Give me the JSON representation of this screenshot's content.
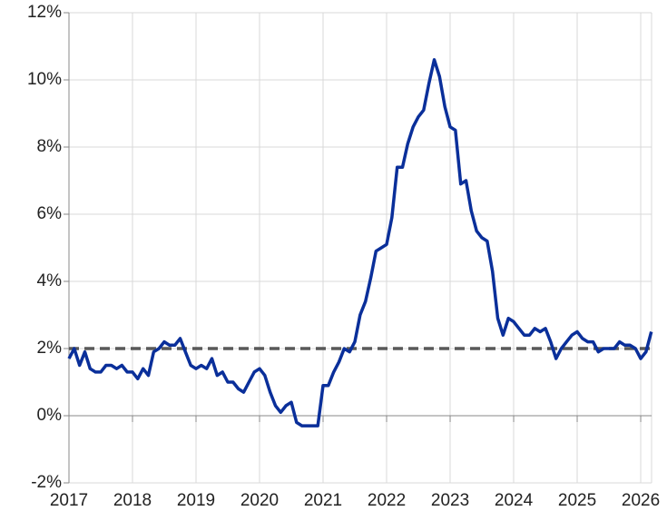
{
  "chart_data": {
    "type": "line",
    "x": [
      2017,
      2017.083,
      2017.167,
      2017.25,
      2017.333,
      2017.417,
      2017.5,
      2017.583,
      2017.667,
      2017.75,
      2017.833,
      2017.917,
      2018,
      2018.083,
      2018.167,
      2018.25,
      2018.333,
      2018.417,
      2018.5,
      2018.583,
      2018.667,
      2018.75,
      2018.833,
      2018.917,
      2019,
      2019.083,
      2019.167,
      2019.25,
      2019.333,
      2019.417,
      2019.5,
      2019.583,
      2019.667,
      2019.75,
      2019.833,
      2019.917,
      2020,
      2020.083,
      2020.167,
      2020.25,
      2020.333,
      2020.417,
      2020.5,
      2020.583,
      2020.667,
      2020.75,
      2020.833,
      2020.917,
      2021,
      2021.083,
      2021.167,
      2021.25,
      2021.333,
      2021.417,
      2021.5,
      2021.583,
      2021.667,
      2021.75,
      2021.833,
      2021.917,
      2022,
      2022.083,
      2022.167,
      2022.25,
      2022.333,
      2022.417,
      2022.5,
      2022.583,
      2022.667,
      2022.75,
      2022.833,
      2022.917,
      2023,
      2023.083,
      2023.167,
      2023.25,
      2023.333,
      2023.417,
      2023.5,
      2023.583,
      2023.667,
      2023.75,
      2023.833,
      2023.917,
      2024,
      2024.083,
      2024.167,
      2024.25,
      2024.333,
      2024.417,
      2024.5,
      2024.583,
      2024.667,
      2024.75,
      2024.833,
      2024.917,
      2025,
      2025.083,
      2025.167,
      2025.25,
      2025.333,
      2025.417,
      2025.5,
      2025.583,
      2025.667,
      2025.75,
      2025.833,
      2025.917,
      2026,
      2026.083,
      2026.167
    ],
    "series": [
      {
        "color": "#0a2f9a",
        "values": [
          1.7,
          2.0,
          1.5,
          1.9,
          1.4,
          1.3,
          1.3,
          1.5,
          1.5,
          1.4,
          1.5,
          1.3,
          1.3,
          1.1,
          1.4,
          1.2,
          1.9,
          2.0,
          2.2,
          2.1,
          2.1,
          2.3,
          1.9,
          1.5,
          1.4,
          1.5,
          1.4,
          1.7,
          1.2,
          1.3,
          1.0,
          1.0,
          0.8,
          0.7,
          1.0,
          1.3,
          1.4,
          1.2,
          0.7,
          0.3,
          0.1,
          0.3,
          0.4,
          -0.2,
          -0.3,
          -0.3,
          -0.3,
          -0.3,
          0.9,
          0.9,
          1.3,
          1.6,
          2.0,
          1.9,
          2.2,
          3.0,
          3.4,
          4.1,
          4.9,
          5.0,
          5.1,
          5.9,
          7.4,
          7.4,
          8.1,
          8.6,
          8.9,
          9.1,
          9.9,
          10.6,
          10.1,
          9.2,
          8.6,
          8.5,
          6.9,
          7.0,
          6.1,
          5.5,
          5.3,
          5.2,
          4.3,
          2.9,
          2.4,
          2.9,
          2.8,
          2.6,
          2.4,
          2.4,
          2.6,
          2.5,
          2.6,
          2.2,
          1.7,
          2.0,
          2.2,
          2.4,
          2.5,
          2.3,
          2.2,
          2.2,
          1.9,
          2.0,
          2.0,
          2.0,
          2.2,
          2.1,
          2.1,
          2.0,
          1.7,
          1.9,
          2.5
        ]
      }
    ],
    "reference_line": {
      "value": 2,
      "color": "#595959",
      "style": "dashed"
    },
    "xlim": [
      2017,
      2026.171
    ],
    "xticks": [
      2017,
      2018,
      2019,
      2020,
      2021,
      2022,
      2023,
      2024,
      2025,
      2026
    ],
    "ylim": [
      -2,
      12
    ],
    "yticks": [
      {
        "value": -2,
        "label": "-2%"
      },
      {
        "value": 0,
        "label": "0%"
      },
      {
        "value": 2,
        "label": "2%"
      },
      {
        "value": 4,
        "label": "4%"
      },
      {
        "value": 6,
        "label": "6%"
      },
      {
        "value": 8,
        "label": "8%"
      },
      {
        "value": 10,
        "label": "10%"
      },
      {
        "value": 12,
        "label": "12%"
      }
    ],
    "grid": true
  }
}
